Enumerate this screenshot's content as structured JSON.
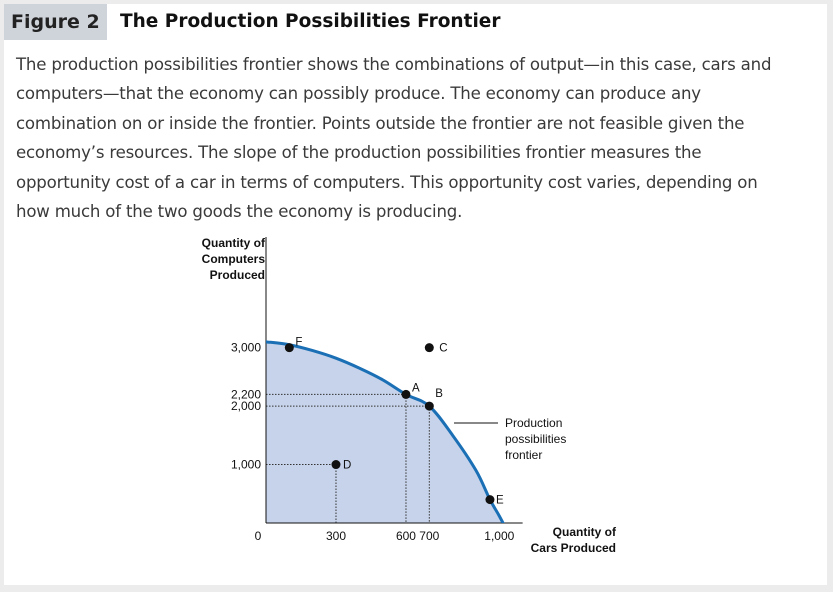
{
  "figure": {
    "label": "Figure 2",
    "title": "The Production Possibilities Frontier",
    "caption": [
      "The production possibilities frontier shows the combinations of output—in this case, cars and",
      "computers—that the economy can possibly produce. The economy can produce any",
      "combination on or inside the frontier. Points outside the frontier are not feasible given the",
      "economy’s resources. The slope of the production possibilities frontier measures the",
      "opportunity cost of a car in terms of computers. This opportunity cost varies, depending on",
      "how much of the two goods the economy is producing."
    ]
  },
  "colors": {
    "frontier": "#1a6fb5",
    "feasible_area": "#c7d3ea",
    "points": "#111111",
    "header_bg": "#cfd3da"
  },
  "chart_data": {
    "type": "line",
    "xlabel": [
      "Quantity of",
      "Cars Produced"
    ],
    "ylabel": [
      "Quantity of",
      "Computers",
      "Produced"
    ],
    "x_ticks": [
      {
        "value": 0,
        "label": "0"
      },
      {
        "value": 300,
        "label": "300"
      },
      {
        "value": 600,
        "label": "600"
      },
      {
        "value": 700,
        "label": "700"
      },
      {
        "value": 1000,
        "label": "1,000"
      }
    ],
    "y_ticks": [
      {
        "value": 1000,
        "label": "1,000"
      },
      {
        "value": 2000,
        "label": "2,000"
      },
      {
        "value": 2200,
        "label": "2,200"
      },
      {
        "value": 3000,
        "label": "3,000"
      }
    ],
    "xlim": [
      0,
      1100
    ],
    "ylim": [
      0,
      3500
    ],
    "series": [
      {
        "name": "Production possibilities frontier",
        "x": [
          0,
          100,
          200,
          300,
          400,
          500,
          600,
          700,
          800,
          900,
          960,
          1000,
          1045
        ],
        "y": [
          3100,
          3050,
          2950,
          2820,
          2650,
          2450,
          2200,
          2000,
          1500,
          900,
          400,
          120,
          -220
        ]
      }
    ],
    "frontier_label": [
      "Production",
      "possibilities",
      "frontier"
    ],
    "points": [
      {
        "name": "F",
        "x": 100,
        "y": 3000
      },
      {
        "name": "A",
        "x": 600,
        "y": 2200
      },
      {
        "name": "B",
        "x": 700,
        "y": 2000
      },
      {
        "name": "C",
        "x": 700,
        "y": 3000
      },
      {
        "name": "D",
        "x": 300,
        "y": 1000
      },
      {
        "name": "E",
        "x": 960,
        "y": 400
      }
    ],
    "grid": false,
    "shaded_region": "on or inside the frontier"
  }
}
